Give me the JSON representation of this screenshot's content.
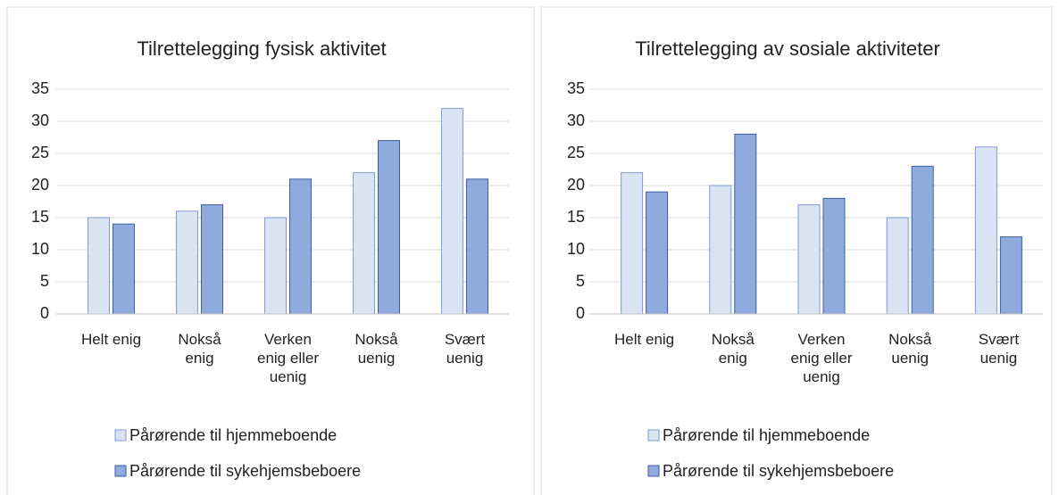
{
  "chart_data": [
    {
      "type": "bar",
      "title": "Tilrettelegging fysisk aktivitet",
      "categories": [
        "Helt enig",
        "Nokså enig",
        "Verken enig eller uenig",
        "Nokså uenig",
        "Svært uenig"
      ],
      "series": [
        {
          "name": "Pårørende til hjemmeboende",
          "color": "#dae3f3",
          "values": [
            15,
            16,
            15,
            22,
            32
          ]
        },
        {
          "name": "Pårørende til sykehjemsbeboere",
          "color": "#8faadc",
          "values": [
            14,
            17,
            21,
            27,
            21
          ]
        }
      ],
      "ylim": [
        0,
        35
      ],
      "yticks": [
        0,
        5,
        10,
        15,
        20,
        25,
        30,
        35
      ],
      "grid": true,
      "legend": "bottom"
    },
    {
      "type": "bar",
      "title": "Tilrettelegging av sosiale aktiviteter",
      "categories": [
        "Helt enig",
        "Nokså enig",
        "Verken enig eller uenig",
        "Nokså uenig",
        "Svært uenig"
      ],
      "series": [
        {
          "name": "Pårørende til hjemmeboende",
          "color": "#dae3f3",
          "values": [
            22,
            20,
            17,
            15,
            26
          ]
        },
        {
          "name": "Pårørende til sykehjemsbeboere",
          "color": "#8faadc",
          "values": [
            19,
            28,
            18,
            23,
            12
          ]
        }
      ],
      "ylim": [
        0,
        35
      ],
      "yticks": [
        0,
        5,
        10,
        15,
        20,
        25,
        30,
        35
      ],
      "grid": true,
      "legend": "bottom"
    }
  ]
}
